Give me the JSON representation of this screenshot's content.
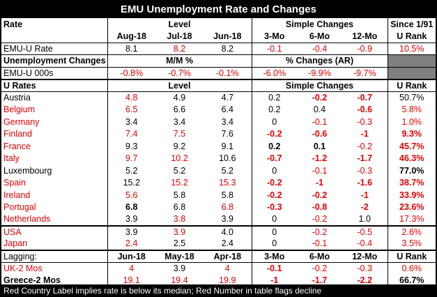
{
  "title": "EMU Unemployment Rate and Changes",
  "footer": "Red Country Label implies rate is below its median; Red Number in table flags decline",
  "rate_section": {
    "row1": {
      "label": "Rate",
      "level": "Level",
      "simple": "Simple Changes",
      "since": "Since 1/91"
    },
    "row2": {
      "months": [
        "Aug-18",
        "Jul-18",
        "Jun-18"
      ],
      "changes": [
        "3-Mo",
        "6-Mo",
        "12-Mo"
      ],
      "rank": "U Rank"
    },
    "emu_rate": {
      "label": "EMU-U Rate",
      "values": [
        "8.1",
        "8.2",
        "8.2"
      ],
      "changes": [
        "-0.1",
        "-0.4",
        "-0.9"
      ],
      "rank": "10.5%"
    },
    "unemp_header": {
      "label": "Unemployment Changes",
      "mm": "M/M %",
      "pct": "% Changes (AR)"
    },
    "emu_000s": {
      "label": "EMU-U 000s",
      "values": [
        "-0.8%",
        "-0.7%",
        "-0.1%"
      ],
      "changes": [
        "-6.0%",
        "-9.9%",
        "-9.7%"
      ]
    }
  },
  "u_rates_header": {
    "label": "U Rates",
    "level": "Level",
    "simple": "Simple Changes",
    "rank": "U Rank"
  },
  "countries": [
    {
      "name": "Austria",
      "name_red": false,
      "v": [
        "4.8",
        "4.9",
        "4.7"
      ],
      "vr": [
        true,
        false,
        false
      ],
      "vb": [
        false,
        false,
        false
      ],
      "c": [
        "0.2",
        "-0.2",
        "-0.7"
      ],
      "cr": [
        false,
        true,
        true
      ],
      "cb": [
        false,
        true,
        true
      ],
      "rank": "50.7%",
      "rr": false,
      "rb": false
    },
    {
      "name": "Belgium",
      "name_red": true,
      "v": [
        "6.5",
        "6.6",
        "6.4"
      ],
      "vr": [
        true,
        false,
        false
      ],
      "vb": [
        false,
        false,
        false
      ],
      "c": [
        "0.2",
        "0.4",
        "-0.6"
      ],
      "cr": [
        false,
        false,
        true
      ],
      "cb": [
        false,
        false,
        true
      ],
      "rank": "5.8%",
      "rr": true,
      "rb": false
    },
    {
      "name": "Germany",
      "name_red": true,
      "v": [
        "3.4",
        "3.4",
        "3.4"
      ],
      "vr": [
        false,
        false,
        false
      ],
      "vb": [
        false,
        false,
        false
      ],
      "c": [
        "0",
        "-0.1",
        "-0.3"
      ],
      "cr": [
        false,
        true,
        true
      ],
      "cb": [
        false,
        false,
        false
      ],
      "rank": "1.0%",
      "rr": true,
      "rb": false
    },
    {
      "name": "Finland",
      "name_red": true,
      "v": [
        "7.4",
        "7.5",
        "7.6"
      ],
      "vr": [
        true,
        true,
        false
      ],
      "vb": [
        false,
        false,
        false
      ],
      "c": [
        "-0.2",
        "-0.6",
        "-1"
      ],
      "cr": [
        true,
        true,
        true
      ],
      "cb": [
        true,
        true,
        true
      ],
      "rank": "9.3%",
      "rr": true,
      "rb": true
    },
    {
      "name": "France",
      "name_red": true,
      "v": [
        "9.3",
        "9.2",
        "9.1"
      ],
      "vr": [
        false,
        false,
        false
      ],
      "vb": [
        false,
        false,
        false
      ],
      "c": [
        "0.2",
        "0.1",
        "-0.2"
      ],
      "cr": [
        false,
        false,
        true
      ],
      "cb": [
        true,
        true,
        false
      ],
      "rank": "45.7%",
      "rr": true,
      "rb": true
    },
    {
      "name": "Italy",
      "name_red": true,
      "v": [
        "9.7",
        "10.2",
        "10.6"
      ],
      "vr": [
        true,
        true,
        false
      ],
      "vb": [
        false,
        false,
        false
      ],
      "c": [
        "-0.7",
        "-1.2",
        "-1.7"
      ],
      "cr": [
        true,
        true,
        true
      ],
      "cb": [
        true,
        true,
        true
      ],
      "rank": "46.3%",
      "rr": true,
      "rb": true
    },
    {
      "name": "Luxembourg",
      "name_red": false,
      "v": [
        "5.2",
        "5.2",
        "5.2"
      ],
      "vr": [
        false,
        false,
        false
      ],
      "vb": [
        false,
        false,
        false
      ],
      "c": [
        "0",
        "-0.1",
        "-0.3"
      ],
      "cr": [
        false,
        true,
        true
      ],
      "cb": [
        false,
        false,
        false
      ],
      "rank": "77.0%",
      "rr": false,
      "rb": true
    },
    {
      "name": "Spain",
      "name_red": true,
      "v": [
        "15.2",
        "15.2",
        "15.3"
      ],
      "vr": [
        false,
        true,
        true
      ],
      "vb": [
        false,
        false,
        false
      ],
      "c": [
        "-0.2",
        "-1",
        "-1.6"
      ],
      "cr": [
        true,
        true,
        true
      ],
      "cb": [
        true,
        true,
        true
      ],
      "rank": "38.7%",
      "rr": true,
      "rb": true
    },
    {
      "name": "Ireland",
      "name_red": true,
      "v": [
        "5.6",
        "5.8",
        "5.8"
      ],
      "vr": [
        true,
        false,
        false
      ],
      "vb": [
        false,
        false,
        false
      ],
      "c": [
        "-0.2",
        "-0.2",
        "-1"
      ],
      "cr": [
        true,
        true,
        true
      ],
      "cb": [
        true,
        true,
        true
      ],
      "rank": "33.9%",
      "rr": true,
      "rb": true
    },
    {
      "name": "Portugal",
      "name_red": true,
      "v": [
        "6.8",
        "6.8",
        "6.8"
      ],
      "vr": [
        false,
        false,
        true
      ],
      "vb": [
        true,
        false,
        false
      ],
      "c": [
        "-0.3",
        "-0.8",
        "-2"
      ],
      "cr": [
        true,
        true,
        true
      ],
      "cb": [
        true,
        true,
        true
      ],
      "rank": "23.6%",
      "rr": true,
      "rb": true
    },
    {
      "name": "Netherlands",
      "name_red": true,
      "v": [
        "3.9",
        "3.8",
        "3.9"
      ],
      "vr": [
        false,
        true,
        false
      ],
      "vb": [
        false,
        false,
        false
      ],
      "c": [
        "0",
        "-0.2",
        "1.0"
      ],
      "cr": [
        false,
        true,
        false
      ],
      "cb": [
        false,
        false,
        false
      ],
      "rank": "17.3%",
      "rr": true,
      "rb": false
    }
  ],
  "others": [
    {
      "name": "USA",
      "name_red": true,
      "v": [
        "3.9",
        "3.9",
        "4.0"
      ],
      "vr": [
        false,
        true,
        false
      ],
      "vb": [
        false,
        false,
        false
      ],
      "c": [
        "0",
        "-0.2",
        "-0.5"
      ],
      "cr": [
        false,
        true,
        true
      ],
      "cb": [
        false,
        false,
        false
      ],
      "rank": "2.6%",
      "rr": true,
      "rb": false
    },
    {
      "name": "Japan",
      "name_red": true,
      "v": [
        "2.4",
        "2.5",
        "2.4"
      ],
      "vr": [
        true,
        false,
        false
      ],
      "vb": [
        false,
        false,
        false
      ],
      "c": [
        "0",
        "-0.1",
        "-0.4"
      ],
      "cr": [
        false,
        true,
        true
      ],
      "cb": [
        false,
        false,
        false
      ],
      "rank": "3.5%",
      "rr": true,
      "rb": false
    }
  ],
  "lagging": {
    "header": {
      "label": "Lagging:",
      "months": [
        "Jun-18",
        "May-18",
        "Apr-18"
      ],
      "changes": [
        "3-Mo",
        "6-Mo",
        "12-Mo"
      ],
      "rank": "U Rank"
    },
    "rows": [
      {
        "name": "UK-2 Mos",
        "name_red": true,
        "name_bold": false,
        "v": [
          "4",
          "3.9",
          "4"
        ],
        "vr": [
          true,
          false,
          true
        ],
        "vb": [
          false,
          false,
          false
        ],
        "c": [
          "-0.1",
          "-0.2",
          "-0.3"
        ],
        "cr": [
          true,
          true,
          true
        ],
        "cb": [
          true,
          false,
          false
        ],
        "rank": "0.6%",
        "rr": true,
        "rb": false
      },
      {
        "name": "Greece-2 Mos",
        "name_red": false,
        "name_bold": true,
        "v": [
          "19.1",
          "19.4",
          "19.9"
        ],
        "vr": [
          true,
          true,
          true
        ],
        "vb": [
          false,
          false,
          false
        ],
        "c": [
          "-1",
          "-1.7",
          "-2.2"
        ],
        "cr": [
          true,
          true,
          true
        ],
        "cb": [
          true,
          true,
          true
        ],
        "rank": "66.7%",
        "rr": false,
        "rb": true
      }
    ]
  }
}
